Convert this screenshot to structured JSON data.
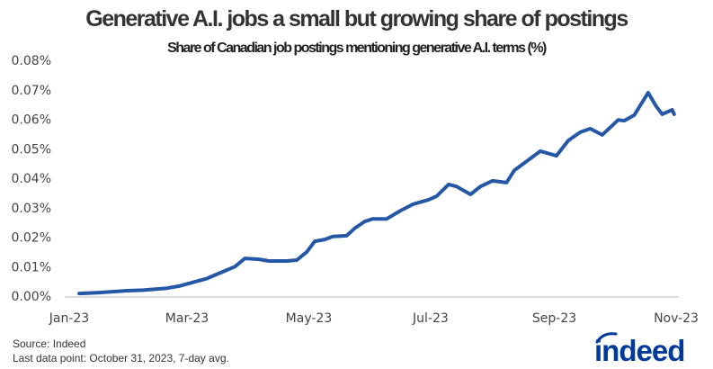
{
  "chart_data": {
    "type": "line",
    "title": "Generative A.I. jobs a small but growing share of postings",
    "subtitle": "Share of Canadian job postings mentioning generative A.I. terms (%)",
    "xlabel": "",
    "ylabel": "",
    "xlim": [
      "2023-01-01",
      "2023-11-01"
    ],
    "ylim": [
      0,
      0.08
    ],
    "x_ticks": [
      {
        "date": "2023-01-01",
        "label": "Jan-23"
      },
      {
        "date": "2023-03-01",
        "label": "Mar-23"
      },
      {
        "date": "2023-05-01",
        "label": "May-23"
      },
      {
        "date": "2023-07-01",
        "label": "Jul-23"
      },
      {
        "date": "2023-09-01",
        "label": "Sep-23"
      },
      {
        "date": "2023-11-01",
        "label": "Nov-23"
      }
    ],
    "y_ticks": [
      {
        "value": 0,
        "label": "0.00%"
      },
      {
        "value": 0.01,
        "label": "0.01%"
      },
      {
        "value": 0.02,
        "label": "0.02%"
      },
      {
        "value": 0.03,
        "label": "0.03%"
      },
      {
        "value": 0.04,
        "label": "0.04%"
      },
      {
        "value": 0.05,
        "label": "0.05%"
      },
      {
        "value": 0.06,
        "label": "0.06%"
      },
      {
        "value": 0.07,
        "label": "0.07%"
      },
      {
        "value": 0.08,
        "label": "0.08%"
      }
    ],
    "grid": false,
    "line_color": "#2557a7",
    "series": [
      {
        "x": [
          "2023-01-06",
          "2023-01-16",
          "2023-01-29",
          "2023-02-07",
          "2023-02-19",
          "2023-02-25",
          "2023-03-11",
          "2023-03-25",
          "2023-03-30",
          "2023-04-06",
          "2023-04-11",
          "2023-04-20",
          "2023-04-25",
          "2023-04-30",
          "2023-05-04",
          "2023-05-09",
          "2023-05-13",
          "2023-05-20",
          "2023-05-24",
          "2023-05-29",
          "2023-06-02",
          "2023-06-09",
          "2023-06-16",
          "2023-06-22",
          "2023-06-30",
          "2023-07-04",
          "2023-07-10",
          "2023-07-14",
          "2023-07-21",
          "2023-07-26",
          "2023-08-01",
          "2023-08-08",
          "2023-08-12",
          "2023-08-17",
          "2023-08-25",
          "2023-09-02",
          "2023-09-08",
          "2023-09-14",
          "2023-09-19",
          "2023-09-25",
          "2023-10-03",
          "2023-10-06",
          "2023-10-11",
          "2023-10-18",
          "2023-10-22",
          "2023-10-25",
          "2023-10-30",
          "2023-10-31"
        ],
        "y": [
          0.0009,
          0.0012,
          0.0018,
          0.002,
          0.0027,
          0.0034,
          0.006,
          0.01,
          0.0128,
          0.0125,
          0.0119,
          0.0119,
          0.0122,
          0.015,
          0.0186,
          0.0192,
          0.0202,
          0.0205,
          0.023,
          0.0253,
          0.0262,
          0.0262,
          0.029,
          0.0311,
          0.0327,
          0.0339,
          0.0379,
          0.0372,
          0.0345,
          0.0372,
          0.0391,
          0.0385,
          0.0427,
          0.0452,
          0.0492,
          0.0476,
          0.0528,
          0.0556,
          0.0568,
          0.0547,
          0.0598,
          0.0595,
          0.0614,
          0.069,
          0.0644,
          0.0617,
          0.0632,
          0.0617
        ]
      }
    ]
  },
  "footer": {
    "source": "Source: Indeed",
    "last_data_point": "Last data point: October 31, 2023, 7-day avg."
  },
  "logo": {
    "text": "indeed",
    "color": "#003a9b"
  }
}
